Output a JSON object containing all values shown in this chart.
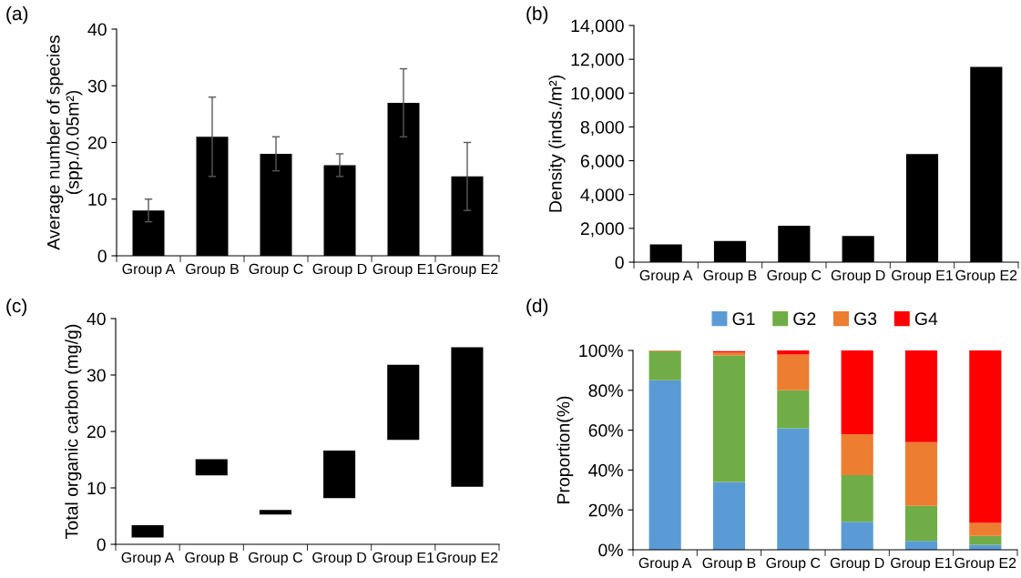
{
  "chart_data": [
    {
      "type": "bar",
      "title": "(a)",
      "ylabel": "Average number of species\n(spp./0.05m²)",
      "categories": [
        "Group A",
        "Group B",
        "Group C",
        "Group D",
        "Group E1",
        "Group E2"
      ],
      "values": [
        8,
        21,
        18,
        16,
        27,
        14
      ],
      "errors": [
        2,
        7,
        3,
        2,
        6,
        6
      ],
      "color": "#000000",
      "ylim": [
        0,
        40
      ],
      "yticks": [
        0,
        10,
        20,
        30,
        40
      ],
      "grid": false,
      "legend": false
    },
    {
      "type": "bar",
      "title": "(b)",
      "ylabel": "Density (inds./m²)",
      "categories": [
        "Group A",
        "Group B",
        "Group C",
        "Group D",
        "Group E1",
        "Group E2"
      ],
      "values": [
        1050,
        1250,
        2150,
        1550,
        6400,
        11550
      ],
      "color": "#000000",
      "ylim": [
        0,
        14000
      ],
      "yticks": [
        0,
        {
          "value": 2000,
          "label": "2,000"
        },
        {
          "value": 4000,
          "label": "4,000"
        },
        {
          "value": 6000,
          "label": "6,000"
        },
        {
          "value": 8000,
          "label": "8,000"
        },
        {
          "value": 10000,
          "label": "10,000"
        },
        {
          "value": 12000,
          "label": "12,000"
        },
        {
          "value": 14000,
          "label": "14,000"
        }
      ],
      "grid": false,
      "legend": false
    },
    {
      "type": "bar",
      "title": "(c)",
      "ylabel": "Total organic carbon (mg/g)",
      "categories": [
        "Group A",
        "Group B",
        "Group C",
        "Group D",
        "Group E1",
        "Group E2"
      ],
      "base": [
        1.2,
        12.2,
        5.3,
        8.2,
        18.5,
        10.2
      ],
      "values": [
        2.2,
        2.9,
        0.8,
        8.4,
        13.3,
        24.7
      ],
      "color": "#000000",
      "ylim": [
        0,
        40
      ],
      "yticks": [
        0,
        10,
        20,
        30,
        40
      ],
      "grid": false,
      "legend": false
    },
    {
      "type": "bar",
      "title": "(d)",
      "ylabel": "Proportion(%)",
      "categories": [
        "Group A",
        "Group B",
        "Group C",
        "Group D",
        "Group E1",
        "Group E2"
      ],
      "stacked": true,
      "series": [
        {
          "name": "G1",
          "color": "#5b9bd5",
          "values": [
            85,
            34,
            61,
            14,
            4.5,
            2.5
          ]
        },
        {
          "name": "G2",
          "color": "#70ad47",
          "values": [
            14.7,
            63.5,
            19,
            23.5,
            17.5,
            4.5
          ]
        },
        {
          "name": "G3",
          "color": "#ed7d31",
          "values": [
            0.3,
            1.5,
            18,
            20.5,
            32,
            6.5
          ]
        },
        {
          "name": "G4",
          "color": "#ff0000",
          "values": [
            0,
            0.7,
            2,
            42,
            46,
            86.5
          ]
        }
      ],
      "ylim": [
        0,
        100
      ],
      "yticks": [
        {
          "value": 0,
          "label": "0%"
        },
        {
          "value": 20,
          "label": "20%"
        },
        {
          "value": 40,
          "label": "40%"
        },
        {
          "value": 60,
          "label": "60%"
        },
        {
          "value": 80,
          "label": "80%"
        },
        {
          "value": 100,
          "label": "100%"
        }
      ],
      "grid": false,
      "legend": "top"
    }
  ]
}
